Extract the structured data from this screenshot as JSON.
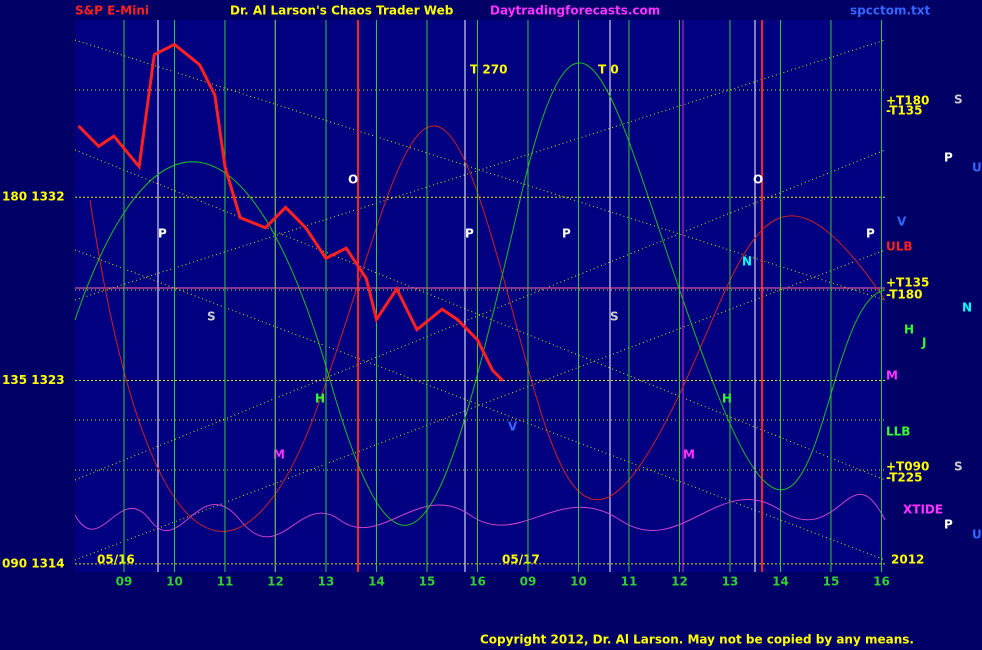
{
  "chart_data": {
    "type": "line",
    "title": "Dr. Al Larson's Chaos Trader Web",
    "subtitle": "S&P E-Mini",
    "site": "Daytradingforecasts.com",
    "file": "spcctom.txt",
    "copyright": "Copyright 2012, Dr. Al Larson. May not be copied by any means.",
    "xlim": [
      -0.97,
      15.07
    ],
    "xticks": [
      {
        "value": 0,
        "label": "09"
      },
      {
        "value": 1,
        "label": "10"
      },
      {
        "value": 2,
        "label": "11"
      },
      {
        "value": 3,
        "label": "12"
      },
      {
        "value": 4,
        "label": "13"
      },
      {
        "value": 5,
        "label": "14"
      },
      {
        "value": 6,
        "label": "15"
      },
      {
        "value": 7,
        "label": "16"
      },
      {
        "value": 8,
        "label": "09"
      },
      {
        "value": 9,
        "label": "10"
      },
      {
        "value": 10,
        "label": "11"
      },
      {
        "value": 11,
        "label": "12"
      },
      {
        "value": 12,
        "label": "13"
      },
      {
        "value": 13,
        "label": "14"
      },
      {
        "value": 14,
        "label": "15"
      },
      {
        "value": 15,
        "label": "16"
      }
    ],
    "ylim": [
      1313.7,
      1340.7
    ],
    "yticks": [
      {
        "value": 1314,
        "label": "090 1314"
      },
      {
        "value": 1323,
        "label": "135 1323"
      },
      {
        "value": 1332,
        "label": "180 1332"
      }
    ],
    "grid": true,
    "x": [
      -0.9,
      -0.5,
      -0.2,
      0.3,
      0.6,
      1.0,
      1.5,
      1.8,
      2.0,
      2.3,
      2.8,
      3.2,
      3.6,
      4.0,
      4.4,
      4.8,
      5.0,
      5.4,
      5.8,
      6.3,
      6.6,
      7.0,
      7.3,
      7.5
    ],
    "series": [
      {
        "name": "S&P E-Mini",
        "color": "#ff2020",
        "values": [
          1335.5,
          1334.5,
          1335,
          1333.5,
          1339,
          1339.5,
          1338.5,
          1337,
          1333.5,
          1331,
          1330.5,
          1331.5,
          1330.5,
          1329,
          1329.5,
          1328,
          1326,
          1327.5,
          1325.5,
          1326.5,
          1326,
          1325,
          1323.5,
          1323
        ]
      }
    ],
    "annotations": [
      "T 270",
      "T 0",
      "+T180",
      "-T135",
      "ULB",
      "+T135",
      "-T180",
      "M",
      "LLB",
      "+T090",
      "-T225",
      "XTIDE",
      "05/16",
      "05/17",
      "2012",
      "O",
      "P",
      "S",
      "H",
      "M",
      "P",
      "P",
      "S",
      "O",
      "N",
      "H",
      "M",
      "V",
      "P",
      "S",
      "P",
      "U",
      "V",
      "N",
      "H",
      "J",
      "S",
      "P",
      "U"
    ]
  }
}
